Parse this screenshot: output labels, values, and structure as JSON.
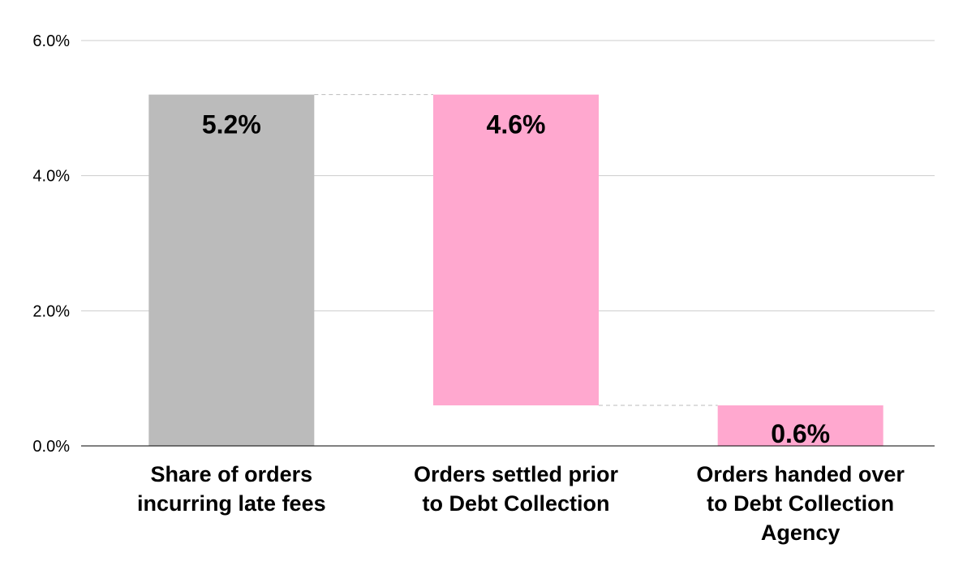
{
  "chart_data": {
    "type": "bar",
    "subtype": "waterfall",
    "title": "",
    "xlabel": "",
    "ylabel": "",
    "ylim": [
      0,
      6
    ],
    "y_ticks": [
      "0.0%",
      "2.0%",
      "4.0%",
      "6.0%"
    ],
    "grid": true,
    "categories": [
      [
        "Share of orders",
        "incurring late fees"
      ],
      [
        "Orders settled prior",
        "to Debt Collection"
      ],
      [
        "Orders handed over",
        "to Debt Collection",
        "Agency"
      ]
    ],
    "bars": [
      {
        "base": 0,
        "top": 5.2,
        "value": 5.2,
        "label": "5.2%",
        "color": "#bbbbbb"
      },
      {
        "base": 0.6,
        "top": 5.2,
        "value": 4.6,
        "label": "4.6%",
        "color": "#ffa8cf"
      },
      {
        "base": 0,
        "top": 0.6,
        "value": 0.6,
        "label": "0.6%",
        "color": "#ffa8cf"
      }
    ],
    "connector_color": "#bbbbbb",
    "gridline_color": "#cccccc",
    "axis_color": "#000000"
  }
}
